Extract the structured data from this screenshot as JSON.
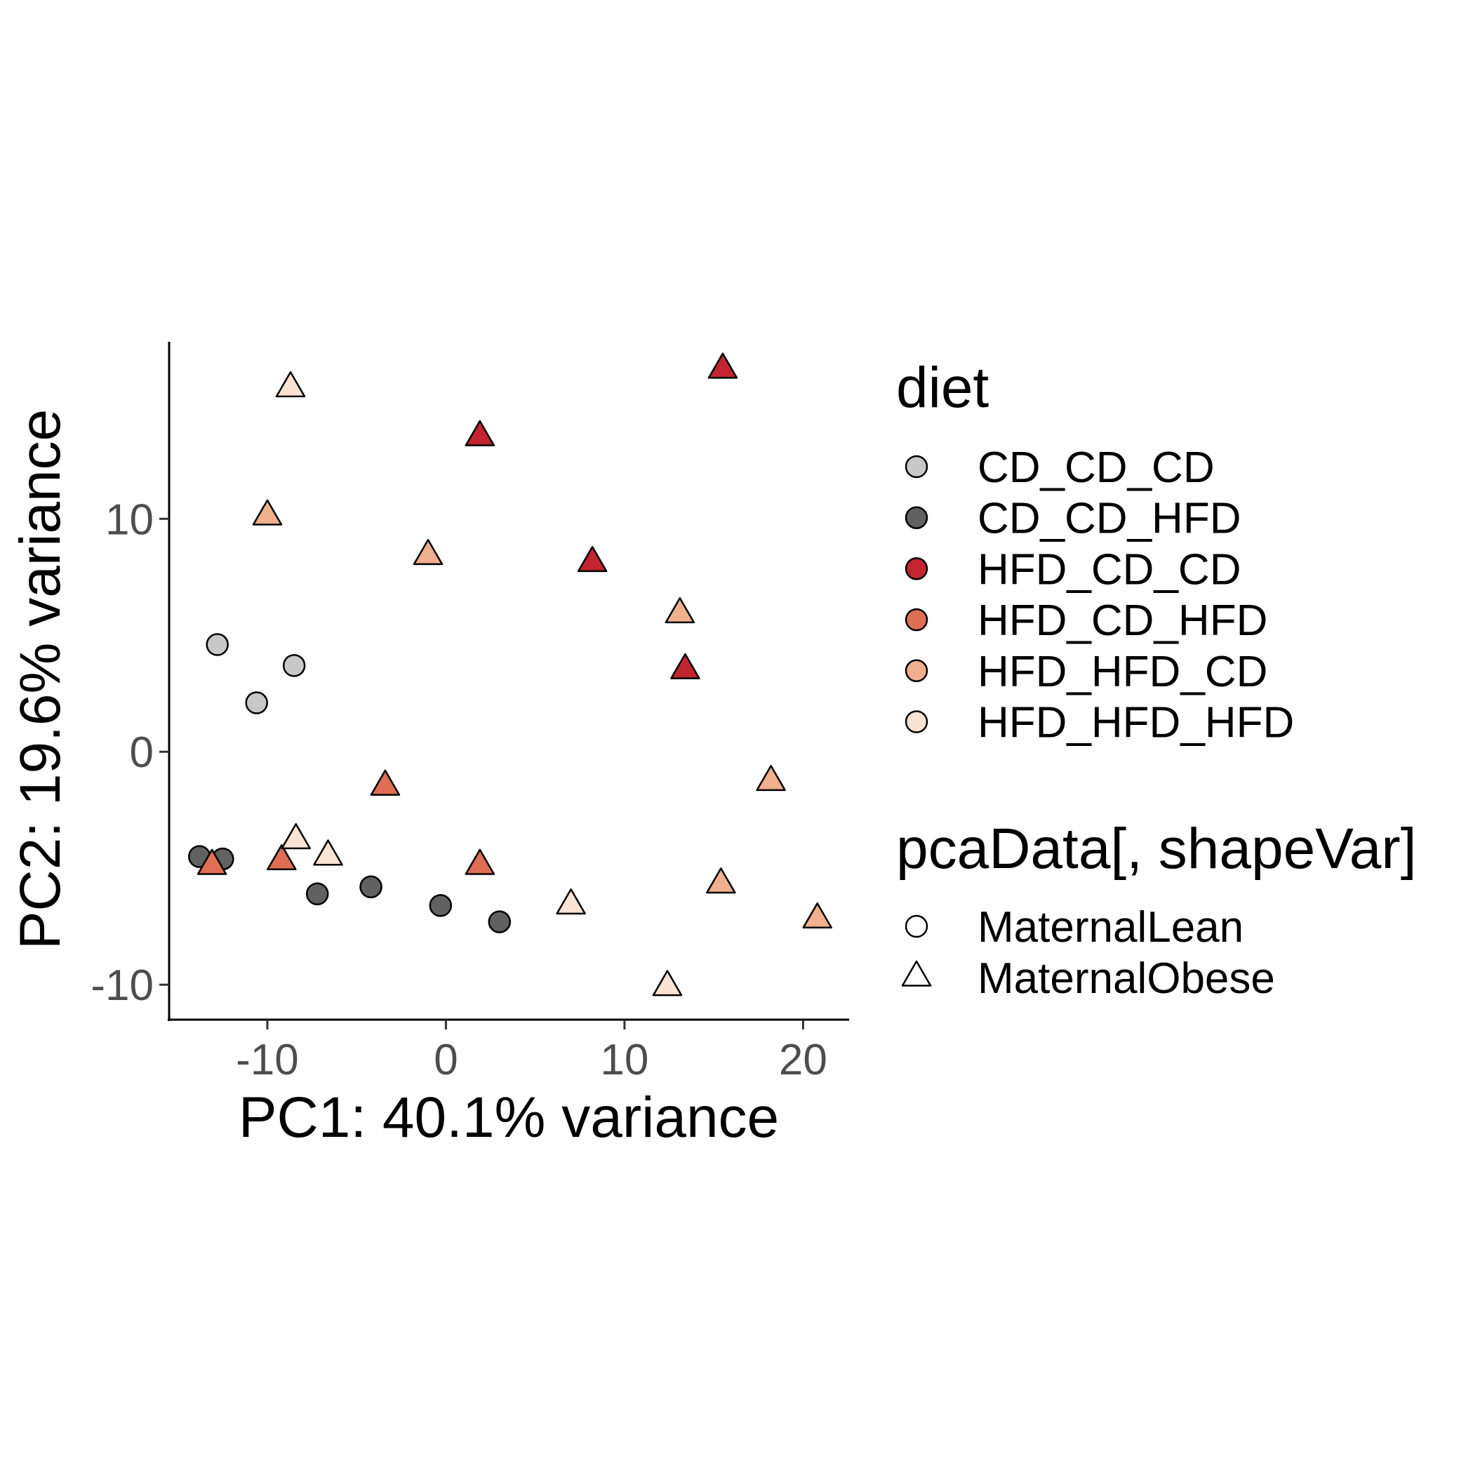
{
  "chart_data": {
    "type": "scatter",
    "xlabel": "PC1: 40.1% variance",
    "ylabel": "PC2: 19.6% variance",
    "xlim": [
      -15.5,
      22.5
    ],
    "ylim": [
      -11.5,
      17.6
    ],
    "x_ticks": [
      -10,
      0,
      10,
      20
    ],
    "y_ticks": [
      -10,
      0,
      10
    ],
    "x_tick_labels": [
      "-10",
      "0",
      "10",
      "20"
    ],
    "y_tick_labels": [
      "-10",
      "0",
      "10"
    ],
    "grid": false,
    "legend_placement": "right",
    "legend": {
      "fill": {
        "title": "diet",
        "entries": [
          {
            "label": "CD_CD_CD",
            "color": "#c8c8c8"
          },
          {
            "label": "CD_CD_HFD",
            "color": "#616161"
          },
          {
            "label": "HFD_CD_CD",
            "color": "#c2252f"
          },
          {
            "label": "HFD_CD_HFD",
            "color": "#df6e55"
          },
          {
            "label": "HFD_HFD_CD",
            "color": "#f0b08d"
          },
          {
            "label": "HFD_HFD_HFD",
            "color": "#fbe3d3"
          }
        ]
      },
      "shape": {
        "title": "pcaData[, shapeVar]",
        "entries": [
          {
            "label": "MaternalLean",
            "shape": "circle"
          },
          {
            "label": "MaternalObese",
            "shape": "triangle"
          }
        ]
      }
    },
    "points": [
      {
        "x": -12.8,
        "y": 4.6,
        "diet": "CD_CD_CD",
        "group": "MaternalLean"
      },
      {
        "x": -8.5,
        "y": 3.7,
        "diet": "CD_CD_CD",
        "group": "MaternalLean"
      },
      {
        "x": -10.6,
        "y": 2.1,
        "diet": "CD_CD_CD",
        "group": "MaternalLean"
      },
      {
        "x": -13.8,
        "y": -4.5,
        "diet": "CD_CD_HFD",
        "group": "MaternalLean"
      },
      {
        "x": -12.5,
        "y": -4.6,
        "diet": "CD_CD_HFD",
        "group": "MaternalLean"
      },
      {
        "x": -7.2,
        "y": -6.1,
        "diet": "CD_CD_HFD",
        "group": "MaternalLean"
      },
      {
        "x": -4.2,
        "y": -5.8,
        "diet": "CD_CD_HFD",
        "group": "MaternalLean"
      },
      {
        "x": -0.3,
        "y": -6.6,
        "diet": "CD_CD_HFD",
        "group": "MaternalLean"
      },
      {
        "x": 3.0,
        "y": -7.3,
        "diet": "CD_CD_HFD",
        "group": "MaternalLean"
      },
      {
        "x": 15.5,
        "y": 16.4,
        "diet": "HFD_CD_CD",
        "group": "MaternalObese"
      },
      {
        "x": 1.9,
        "y": 13.5,
        "diet": "HFD_CD_CD",
        "group": "MaternalObese"
      },
      {
        "x": 8.2,
        "y": 8.1,
        "diet": "HFD_CD_CD",
        "group": "MaternalObese"
      },
      {
        "x": 13.4,
        "y": 3.5,
        "diet": "HFD_CD_CD",
        "group": "MaternalObese"
      },
      {
        "x": -3.4,
        "y": -1.5,
        "diet": "HFD_CD_HFD",
        "group": "MaternalObese"
      },
      {
        "x": -13.1,
        "y": -4.9,
        "diet": "HFD_CD_HFD",
        "group": "MaternalObese"
      },
      {
        "x": -9.2,
        "y": -4.7,
        "diet": "HFD_CD_HFD",
        "group": "MaternalObese"
      },
      {
        "x": 1.9,
        "y": -4.9,
        "diet": "HFD_CD_HFD",
        "group": "MaternalObese"
      },
      {
        "x": -10.0,
        "y": 10.1,
        "diet": "HFD_HFD_CD",
        "group": "MaternalObese"
      },
      {
        "x": -1.0,
        "y": 8.4,
        "diet": "HFD_HFD_CD",
        "group": "MaternalObese"
      },
      {
        "x": 13.1,
        "y": 5.9,
        "diet": "HFD_HFD_CD",
        "group": "MaternalObese"
      },
      {
        "x": 18.2,
        "y": -1.3,
        "diet": "HFD_HFD_CD",
        "group": "MaternalObese"
      },
      {
        "x": 15.4,
        "y": -5.7,
        "diet": "HFD_HFD_CD",
        "group": "MaternalObese"
      },
      {
        "x": 20.8,
        "y": -7.2,
        "diet": "HFD_HFD_CD",
        "group": "MaternalObese"
      },
      {
        "x": -8.7,
        "y": 15.6,
        "diet": "HFD_HFD_HFD",
        "group": "MaternalObese"
      },
      {
        "x": -8.4,
        "y": -3.8,
        "diet": "HFD_HFD_HFD",
        "group": "MaternalObese"
      },
      {
        "x": -6.6,
        "y": -4.5,
        "diet": "HFD_HFD_HFD",
        "group": "MaternalObese"
      },
      {
        "x": 7.0,
        "y": -6.6,
        "diet": "HFD_HFD_HFD",
        "group": "MaternalObese"
      },
      {
        "x": 12.4,
        "y": -10.1,
        "diet": "HFD_HFD_HFD",
        "group": "MaternalObese"
      }
    ]
  }
}
